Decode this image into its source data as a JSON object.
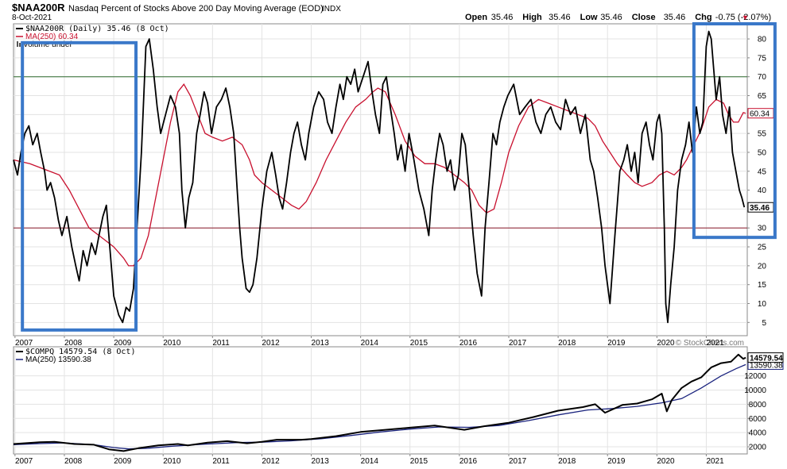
{
  "header": {
    "symbol": "$NAA200R",
    "description": "Nasdaq Percent of Stocks Above 200 Day Moving Average (EOD)",
    "exchange": "INDX",
    "date": "8-Oct-2021",
    "ohlc": [
      {
        "label": "Open",
        "value": "35.46"
      },
      {
        "label": "High",
        "value": "35.46"
      },
      {
        "label": "Low",
        "value": "35.46"
      },
      {
        "label": "Close",
        "value": "35.46"
      },
      {
        "label": "Chg",
        "value": "-0.75 (-2.07%)"
      }
    ],
    "chg_arrow": "▼",
    "watermark": "© StockCharts.com"
  },
  "chart_data": [
    {
      "type": "line",
      "panel": "upper",
      "legend": [
        "$NAA200R (Daily) 35.46 (8 Oct)",
        "MA(250) 60.34",
        "Volume undef"
      ],
      "x_tick_labels": [
        "2007",
        "2008",
        "2009",
        "2010",
        "2011",
        "2012",
        "2013",
        "2014",
        "2015",
        "2016",
        "2017",
        "2018",
        "2019",
        "2020",
        "2021"
      ],
      "y_ticks": [
        5,
        10,
        15,
        20,
        25,
        30,
        35,
        40,
        45,
        50,
        55,
        60,
        65,
        70,
        75,
        80
      ],
      "ylim": [
        1.5,
        84
      ],
      "xlim": [
        2006.97,
        2021.83
      ],
      "reference_lines": [
        70,
        30
      ],
      "last_value_label": "35.46",
      "ma_value_label": "60.34",
      "colors": {
        "price": "#000000",
        "ma": "#c8102e",
        "upper_ref": "#2e6b2e",
        "lower_ref": "#8b1a2b",
        "highlight": "#3a78c9"
      },
      "highlight_boxes": [
        {
          "x0": 2007.15,
          "x1": 2009.45,
          "y0": 3.0,
          "y1": 79.0
        },
        {
          "x0": 2020.75,
          "x1": 2021.78,
          "y0": 27.5,
          "y1": 84.0
        }
      ],
      "series": [
        {
          "name": "$NAA200R",
          "x": [
            2006.97,
            2007.05,
            2007.12,
            2007.2,
            2007.28,
            2007.36,
            2007.45,
            2007.52,
            2007.6,
            2007.65,
            2007.72,
            2007.8,
            2007.88,
            2007.95,
            2008.05,
            2008.15,
            2008.23,
            2008.3,
            2008.38,
            2008.46,
            2008.55,
            2008.63,
            2008.7,
            2008.78,
            2008.85,
            2008.92,
            2009.0,
            2009.1,
            2009.18,
            2009.25,
            2009.32,
            2009.4,
            2009.48,
            2009.56,
            2009.65,
            2009.72,
            2009.8,
            2009.88,
            2009.95,
            2010.05,
            2010.15,
            2010.25,
            2010.33,
            2010.38,
            2010.45,
            2010.52,
            2010.6,
            2010.68,
            2010.75,
            2010.83,
            2010.9,
            2010.98,
            2011.08,
            2011.18,
            2011.27,
            2011.35,
            2011.43,
            2011.5,
            2011.55,
            2011.6,
            2011.68,
            2011.75,
            2011.82,
            2011.9,
            2012.0,
            2012.1,
            2012.2,
            2012.28,
            2012.35,
            2012.42,
            2012.5,
            2012.58,
            2012.65,
            2012.72,
            2012.8,
            2012.88,
            2012.95,
            2013.05,
            2013.15,
            2013.25,
            2013.33,
            2013.42,
            2013.5,
            2013.58,
            2013.65,
            2013.72,
            2013.8,
            2013.88,
            2013.95,
            2014.05,
            2014.15,
            2014.22,
            2014.3,
            2014.38,
            2014.45,
            2014.52,
            2014.6,
            2014.68,
            2014.75,
            2014.82,
            2014.9,
            2014.98,
            2015.08,
            2015.18,
            2015.28,
            2015.38,
            2015.45,
            2015.52,
            2015.6,
            2015.67,
            2015.75,
            2015.82,
            2015.9,
            2015.98,
            2016.05,
            2016.12,
            2016.2,
            2016.28,
            2016.36,
            2016.45,
            2016.52,
            2016.6,
            2016.68,
            2016.75,
            2016.82,
            2016.9,
            2016.98,
            2017.1,
            2017.22,
            2017.33,
            2017.45,
            2017.55,
            2017.65,
            2017.75,
            2017.85,
            2017.95,
            2018.05,
            2018.15,
            2018.25,
            2018.35,
            2018.45,
            2018.55,
            2018.65,
            2018.72,
            2018.8,
            2018.88,
            2018.95,
            2019.05,
            2019.15,
            2019.25,
            2019.33,
            2019.4,
            2019.48,
            2019.55,
            2019.62,
            2019.7,
            2019.78,
            2019.85,
            2019.92,
            2020.0,
            2020.05,
            2020.1,
            2020.15,
            2020.18,
            2020.22,
            2020.28,
            2020.35,
            2020.42,
            2020.5,
            2020.58,
            2020.65,
            2020.72,
            2020.8,
            2020.87,
            2020.93,
            2021.0,
            2021.05,
            2021.1,
            2021.15,
            2021.2,
            2021.27,
            2021.33,
            2021.4,
            2021.47,
            2021.53,
            2021.6,
            2021.67,
            2021.72,
            2021.77
          ],
          "y": [
            48,
            44,
            50,
            55,
            57,
            52,
            55,
            50,
            45,
            40,
            42,
            38,
            32,
            28,
            33,
            25,
            20,
            16,
            24,
            20,
            26,
            23,
            28,
            33,
            36,
            25,
            12,
            7,
            5,
            9,
            8,
            14,
            32,
            50,
            78,
            80,
            72,
            62,
            55,
            60,
            65,
            62,
            55,
            40,
            30,
            38,
            42,
            55,
            60,
            66,
            63,
            55,
            62,
            64,
            67,
            62,
            55,
            40,
            30,
            22,
            14,
            13,
            15,
            22,
            35,
            45,
            50,
            44,
            38,
            35,
            42,
            50,
            55,
            58,
            52,
            48,
            55,
            62,
            66,
            64,
            58,
            55,
            62,
            68,
            64,
            70,
            68,
            72,
            66,
            70,
            74,
            67,
            60,
            55,
            68,
            70,
            62,
            55,
            48,
            52,
            45,
            55,
            48,
            40,
            35,
            28,
            40,
            48,
            55,
            52,
            45,
            48,
            40,
            44,
            55,
            52,
            40,
            28,
            18,
            12,
            30,
            42,
            55,
            52,
            58,
            62,
            65,
            68,
            60,
            62,
            64,
            58,
            55,
            60,
            62,
            58,
            56,
            64,
            60,
            62,
            55,
            60,
            48,
            45,
            38,
            30,
            20,
            10,
            28,
            45,
            48,
            52,
            45,
            50,
            42,
            55,
            58,
            52,
            48,
            58,
            60,
            55,
            30,
            10,
            5,
            15,
            25,
            40,
            48,
            52,
            58,
            50,
            62,
            55,
            58,
            78,
            82,
            80,
            72,
            64,
            70,
            60,
            55,
            62,
            50,
            45,
            40,
            38,
            35.46
          ]
        },
        {
          "name": "MA(250)",
          "x": [
            2006.97,
            2007.3,
            2007.6,
            2007.9,
            2008.1,
            2008.3,
            2008.5,
            2008.8,
            2009.0,
            2009.2,
            2009.3,
            2009.4,
            2009.55,
            2009.7,
            2009.85,
            2010.0,
            2010.15,
            2010.3,
            2010.42,
            2010.55,
            2010.7,
            2010.85,
            2011.0,
            2011.2,
            2011.4,
            2011.6,
            2011.75,
            2011.85,
            2012.0,
            2012.2,
            2012.4,
            2012.6,
            2012.75,
            2012.9,
            2013.1,
            2013.3,
            2013.5,
            2013.7,
            2013.9,
            2014.1,
            2014.25,
            2014.35,
            2014.5,
            2014.7,
            2014.9,
            2015.1,
            2015.3,
            2015.5,
            2015.7,
            2015.9,
            2016.1,
            2016.25,
            2016.4,
            2016.55,
            2016.7,
            2016.85,
            2017.0,
            2017.2,
            2017.4,
            2017.6,
            2017.8,
            2018.0,
            2018.2,
            2018.4,
            2018.6,
            2018.75,
            2018.9,
            2019.05,
            2019.2,
            2019.4,
            2019.55,
            2019.7,
            2019.9,
            2020.05,
            2020.2,
            2020.35,
            2020.5,
            2020.6,
            2020.75,
            2020.9,
            2021.05,
            2021.2,
            2021.35,
            2021.45,
            2021.55,
            2021.65,
            2021.75,
            2021.8
          ],
          "y": [
            48,
            47,
            45.5,
            44,
            40,
            35,
            30,
            27,
            25,
            22,
            20,
            20,
            22,
            28,
            38,
            48,
            58,
            66,
            68,
            65,
            60,
            55,
            54,
            53,
            54,
            52,
            48,
            44,
            42,
            40,
            38,
            36,
            35,
            37,
            42,
            48,
            53,
            58,
            62,
            64,
            66,
            67,
            66,
            60,
            53,
            49,
            47,
            47,
            46,
            44,
            42,
            40,
            36,
            34,
            35,
            42,
            50,
            57,
            62,
            64,
            63,
            62,
            61,
            60,
            59,
            57,
            53,
            50,
            47,
            44,
            42,
            41,
            42,
            44,
            45,
            44,
            46,
            48,
            52,
            56,
            62,
            64,
            63,
            60,
            58,
            58,
            60.5,
            60.34
          ]
        }
      ]
    },
    {
      "type": "line",
      "panel": "lower",
      "legend": [
        "$COMPQ 14579.54 (8 Oct)",
        "MA(250) 13590.38"
      ],
      "x_tick_labels": [
        "2007",
        "2008",
        "2009",
        "2010",
        "2011",
        "2012",
        "2013",
        "2014",
        "2015",
        "2016",
        "2017",
        "2018",
        "2019",
        "2020",
        "2021"
      ],
      "y_ticks": [
        2000,
        4000,
        6000,
        8000,
        10000,
        12000
      ],
      "ylim": [
        1000,
        16100
      ],
      "xlim": [
        2006.97,
        2021.83
      ],
      "last_value_label": "14579.54",
      "ma_value_label": "13590.38",
      "colors": {
        "price": "#000000",
        "ma": "#1a237e"
      },
      "series": [
        {
          "name": "$COMPQ",
          "x": [
            2006.97,
            2007.5,
            2007.8,
            2008.2,
            2008.6,
            2008.9,
            2009.2,
            2009.5,
            2009.9,
            2010.3,
            2010.5,
            2010.9,
            2011.3,
            2011.7,
            2012.0,
            2012.3,
            2012.8,
            2013.0,
            2013.5,
            2014.0,
            2014.5,
            2015.0,
            2015.5,
            2016.1,
            2016.5,
            2017.0,
            2017.5,
            2018.0,
            2018.5,
            2018.75,
            2018.95,
            2019.3,
            2019.6,
            2019.9,
            2020.1,
            2020.2,
            2020.3,
            2020.5,
            2020.7,
            2020.9,
            2021.1,
            2021.3,
            2021.5,
            2021.65,
            2021.75,
            2021.8
          ],
          "y": [
            2400,
            2650,
            2700,
            2400,
            2300,
            1650,
            1400,
            1800,
            2200,
            2400,
            2200,
            2600,
            2800,
            2500,
            2700,
            3000,
            3000,
            3100,
            3500,
            4100,
            4400,
            4700,
            5000,
            4400,
            4900,
            5400,
            6200,
            7100,
            7600,
            8000,
            6800,
            7900,
            8100,
            8700,
            9500,
            7000,
            8600,
            10300,
            11200,
            11800,
            13200,
            13800,
            14000,
            15000,
            14400,
            14579
          ]
        },
        {
          "name": "MA(250)",
          "x": [
            2006.97,
            2007.5,
            2008.0,
            2008.6,
            2009.0,
            2009.3,
            2009.7,
            2010.2,
            2010.8,
            2011.5,
            2012.0,
            2012.6,
            2013.2,
            2013.8,
            2014.4,
            2015.0,
            2015.6,
            2016.2,
            2016.8,
            2017.4,
            2018.0,
            2018.6,
            2019.1,
            2019.6,
            2020.1,
            2020.5,
            2020.9,
            2021.3,
            2021.6,
            2021.8
          ],
          "y": [
            2300,
            2450,
            2550,
            2300,
            1900,
            1700,
            1800,
            2100,
            2350,
            2600,
            2650,
            2850,
            3150,
            3600,
            4100,
            4500,
            4800,
            4750,
            5000,
            5700,
            6500,
            7200,
            7400,
            7700,
            8200,
            8800,
            10300,
            12000,
            13000,
            13590
          ]
        }
      ]
    }
  ]
}
